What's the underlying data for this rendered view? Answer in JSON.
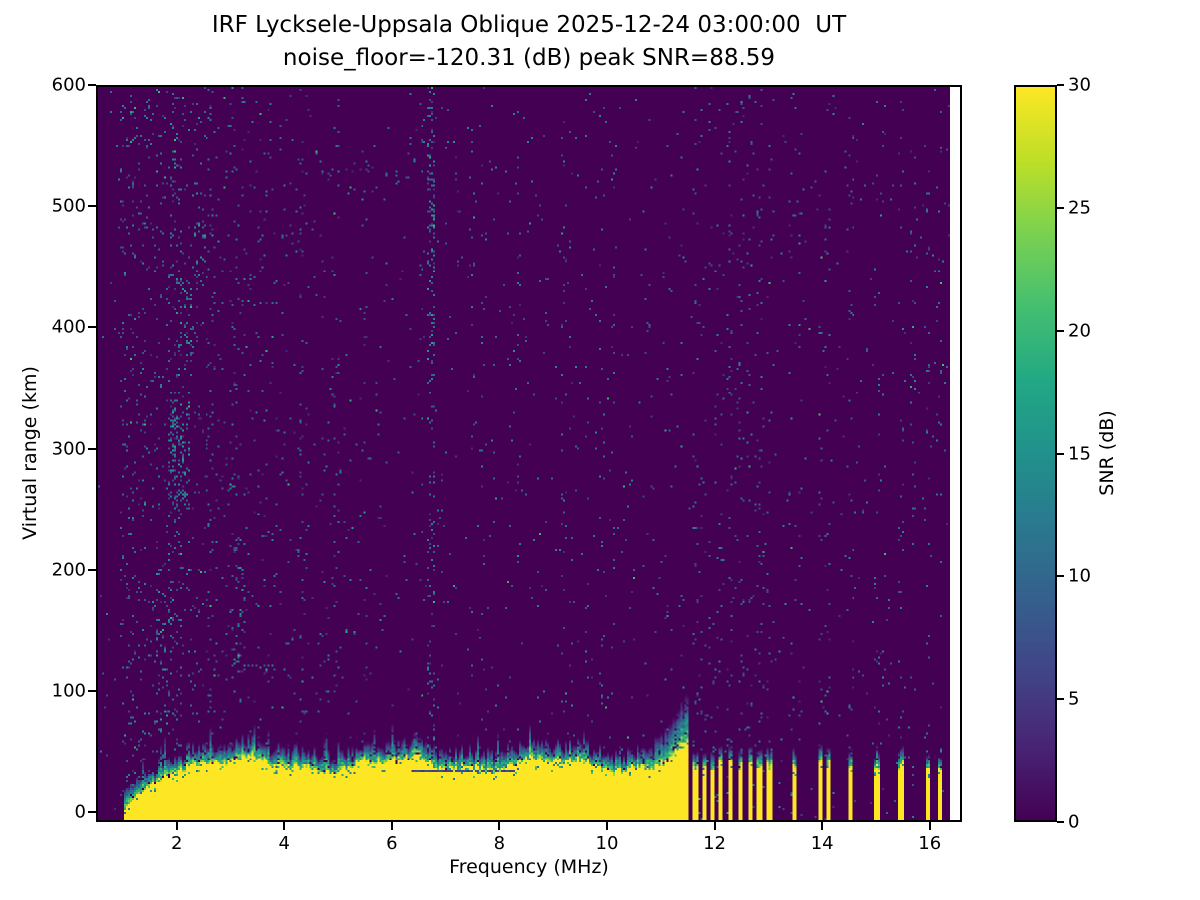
{
  "chart_data": {
    "type": "heatmap",
    "title": "IRF Lycksele-Uppsala Oblique 2025-12-24 03:00:00  UT",
    "subtitle": "noise_floor=-120.31 (dB) peak SNR=88.59",
    "station_pair": "IRF Lycksele-Uppsala Oblique",
    "timestamp_ut": "2025-12-24 03:00:00",
    "noise_floor_db": -120.31,
    "peak_snr_db": 88.59,
    "xlabel": "Frequency (MHz)",
    "ylabel": "Virtual range (km)",
    "xlim": [
      0.5,
      16.6
    ],
    "ylim": [
      -8,
      600
    ],
    "xticks": [
      2,
      4,
      6,
      8,
      10,
      12,
      14,
      16
    ],
    "yticks": [
      0,
      100,
      200,
      300,
      400,
      500,
      600
    ],
    "grid": false,
    "colorbar": {
      "label": "SNR (dB)",
      "min": 0,
      "max": 30,
      "ticks": [
        0,
        5,
        10,
        15,
        20,
        25,
        30
      ],
      "colormap": "viridis",
      "viridis_stops": [
        "#440154",
        "#482475",
        "#414487",
        "#355f8d",
        "#2a788e",
        "#21918c",
        "#22a884",
        "#44bf70",
        "#7ad151",
        "#bddf26",
        "#fde725"
      ]
    },
    "features": {
      "background_snr_db": 0,
      "data_right_edge_mhz": 16.43,
      "ground_band": {
        "freq_start_mhz": 0.98,
        "freq_end_mhz": 11.55,
        "top_km": 40,
        "transition_top_km": 58,
        "snr_db": 30
      },
      "discrete_bars_mhz": [
        11.66,
        11.82,
        11.97,
        12.13,
        12.31,
        12.5,
        12.68,
        12.86,
        13.04,
        13.5,
        13.99,
        14.13,
        14.56,
        15.06,
        15.5,
        16.0,
        16.22
      ],
      "notes": "Saturated (>=30 dB) band below ~40-60 km virtual range from ~1 to 11.5 MHz, breaking into discrete narrow bars above 11.6 MHz; sparse low-SNR teal speckle noise strongest below ~7 MHz with faint vertical interference stripes and a tall noise column near 6.7 MHz."
    }
  }
}
